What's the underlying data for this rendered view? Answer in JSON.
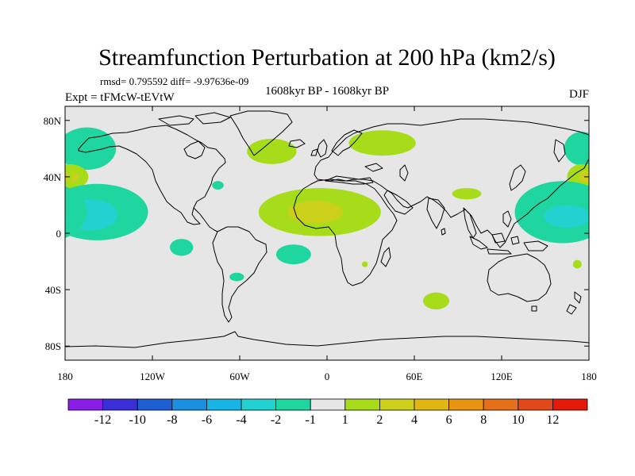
{
  "chart_data": {
    "type": "heatmap",
    "title": "Streamfunction Perturbation at 200 hPa (km2/s)",
    "stats_line": "rmsd= 0.795592 diff= -9.97636e-09",
    "left_label": "Expt = tFMcW-tEVtW",
    "center_label": "1608kyr BP - 1608kyr BP",
    "right_label": "DJF",
    "xlim": [
      -180,
      180
    ],
    "ylim": [
      -90,
      90
    ],
    "x_ticks": [
      {
        "value": -180,
        "label": "180"
      },
      {
        "value": -120,
        "label": "120W"
      },
      {
        "value": -60,
        "label": "60W"
      },
      {
        "value": 0,
        "label": "0"
      },
      {
        "value": 60,
        "label": "60E"
      },
      {
        "value": 120,
        "label": "120E"
      },
      {
        "value": 180,
        "label": "180"
      }
    ],
    "y_ticks": [
      {
        "value": 80,
        "label": "80N"
      },
      {
        "value": 40,
        "label": "40N"
      },
      {
        "value": 0,
        "label": "0"
      },
      {
        "value": -40,
        "label": "40S"
      },
      {
        "value": -80,
        "label": "80S"
      }
    ],
    "colorbar": {
      "colors": [
        "#8a1ee8",
        "#3a2fd8",
        "#1f5fd6",
        "#1b8fe0",
        "#17b4e6",
        "#22d2d0",
        "#1fd6a0",
        "#e6e6e6",
        "#a6dc1a",
        "#ccd01a",
        "#e0b612",
        "#e69412",
        "#e6701a",
        "#e04a1a",
        "#e61a0a"
      ],
      "labels": [
        "-12",
        "-10",
        "-8",
        "-6",
        "-4",
        "-2",
        "-1",
        "1",
        "2",
        "4",
        "6",
        "8",
        "10",
        "12"
      ]
    },
    "anomaly_regions": [
      {
        "lon": -165,
        "lat": 60,
        "rlon": 20,
        "rlat": 15,
        "value": -1.5
      },
      {
        "lon": 175,
        "lat": 60,
        "rlon": 12,
        "rlat": 12,
        "value": -1.5
      },
      {
        "lon": -38,
        "lat": 58,
        "rlon": 17,
        "rlat": 9,
        "value": 1.5
      },
      {
        "lon": 38,
        "lat": 64,
        "rlon": 23,
        "rlat": 9,
        "value": 1.5
      },
      {
        "lon": -177,
        "lat": 40,
        "rlon": 13,
        "rlat": 9,
        "value": 1.5
      },
      {
        "lon": -177,
        "lat": 40,
        "rlon": 6,
        "rlat": 4,
        "value": 3
      },
      {
        "lon": 175,
        "lat": 40,
        "rlon": 10,
        "rlat": 9,
        "value": 1.5
      },
      {
        "lon": 178,
        "lat": 40,
        "rlon": 5,
        "rlat": 4,
        "value": 3
      },
      {
        "lon": -158,
        "lat": 15,
        "rlon": 35,
        "rlat": 20,
        "value": -1.5
      },
      {
        "lon": -163,
        "lat": 13,
        "rlon": 19,
        "rlat": 11,
        "value": -3
      },
      {
        "lon": 162,
        "lat": 15,
        "rlon": 33,
        "rlat": 22,
        "value": -1.5
      },
      {
        "lon": 165,
        "lat": 12,
        "rlon": 16,
        "rlat": 8,
        "value": -3
      },
      {
        "lon": -75,
        "lat": 34,
        "rlon": 4,
        "rlat": 3,
        "value": -1.5
      },
      {
        "lon": -5,
        "lat": 15,
        "rlon": 42,
        "rlat": 17,
        "value": 1.5
      },
      {
        "lon": -8,
        "lat": 15,
        "rlon": 19,
        "rlat": 8,
        "value": 3
      },
      {
        "lon": 96,
        "lat": 28,
        "rlon": 10,
        "rlat": 4,
        "value": 1.5
      },
      {
        "lon": -100,
        "lat": -10,
        "rlon": 8,
        "rlat": 6,
        "value": -1.5
      },
      {
        "lon": -23,
        "lat": -15,
        "rlon": 12,
        "rlat": 7,
        "value": -1.5
      },
      {
        "lon": -62,
        "lat": -31,
        "rlon": 5,
        "rlat": 3,
        "value": -1.5
      },
      {
        "lon": 26,
        "lat": -22,
        "rlon": 2,
        "rlat": 2,
        "value": 2
      },
      {
        "lon": 75,
        "lat": -48,
        "rlon": 9,
        "rlat": 6,
        "value": 1.5
      },
      {
        "lon": 172,
        "lat": -22,
        "rlon": 3,
        "rlat": 3,
        "value": 1.5
      }
    ]
  }
}
